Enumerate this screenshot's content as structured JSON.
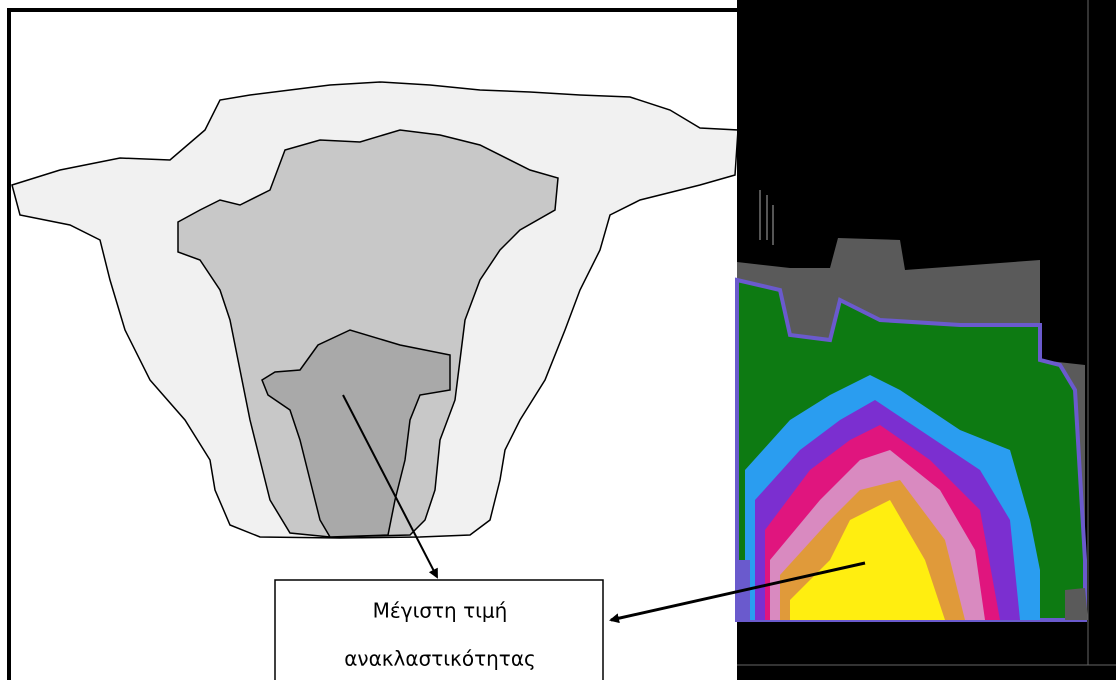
{
  "label": {
    "lines": [
      "Μέγιστη τιμή",
      "ανακλαστικότητας"
    ]
  }
}
